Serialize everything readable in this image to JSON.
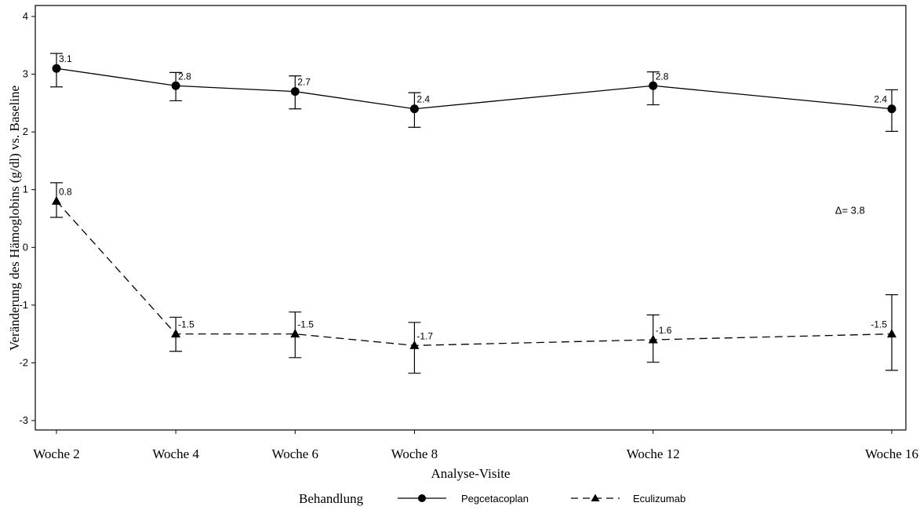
{
  "chart_data": {
    "type": "line",
    "xlabel": "Analyse-Visite",
    "ylabel": "Veränderung des Hämoglobins (g/dl) vs. Baseline",
    "categories": [
      "Woche 2",
      "Woche 4",
      "Woche 6",
      "Woche 8",
      "Woche 12",
      "Woche 16"
    ],
    "x": [
      2,
      4,
      6,
      8,
      12,
      16
    ],
    "xlim": [
      2,
      16
    ],
    "ylim": [
      -3.2,
      4.2
    ],
    "yticks": [
      -3,
      -2,
      -1,
      0,
      1,
      2,
      3,
      4
    ],
    "grid": false,
    "legend": {
      "title": "Behandlung",
      "position": "bottom"
    },
    "series": [
      {
        "name": "Pegcetacoplan",
        "marker": "circle",
        "line_style": "solid",
        "color": "#000000",
        "values": [
          3.1,
          2.8,
          2.7,
          2.4,
          2.8,
          2.4
        ],
        "labels": [
          "3.1",
          "2.8",
          "2.7",
          "2.4",
          "2.8",
          "2.4"
        ],
        "err_low": [
          2.78,
          2.54,
          2.4,
          2.08,
          2.47,
          2.01
        ],
        "err_high": [
          3.36,
          3.03,
          2.97,
          2.68,
          3.04,
          2.73
        ]
      },
      {
        "name": "Eculizumab",
        "marker": "triangle",
        "line_style": "dashed",
        "color": "#000000",
        "values": [
          0.8,
          -1.5,
          -1.5,
          -1.7,
          -1.6,
          -1.5
        ],
        "labels": [
          "0.8",
          "-1.5",
          "-1.5",
          "-1.7",
          "-1.6",
          "-1.5"
        ],
        "err_low": [
          0.52,
          -1.8,
          -1.91,
          -2.18,
          -1.99,
          -2.13
        ],
        "err_high": [
          1.12,
          -1.21,
          -1.12,
          -1.3,
          -1.17,
          -0.82
        ]
      }
    ],
    "annotations": [
      {
        "text": "Δ= 3.8",
        "x": 15.3,
        "y": 0.58
      }
    ]
  }
}
